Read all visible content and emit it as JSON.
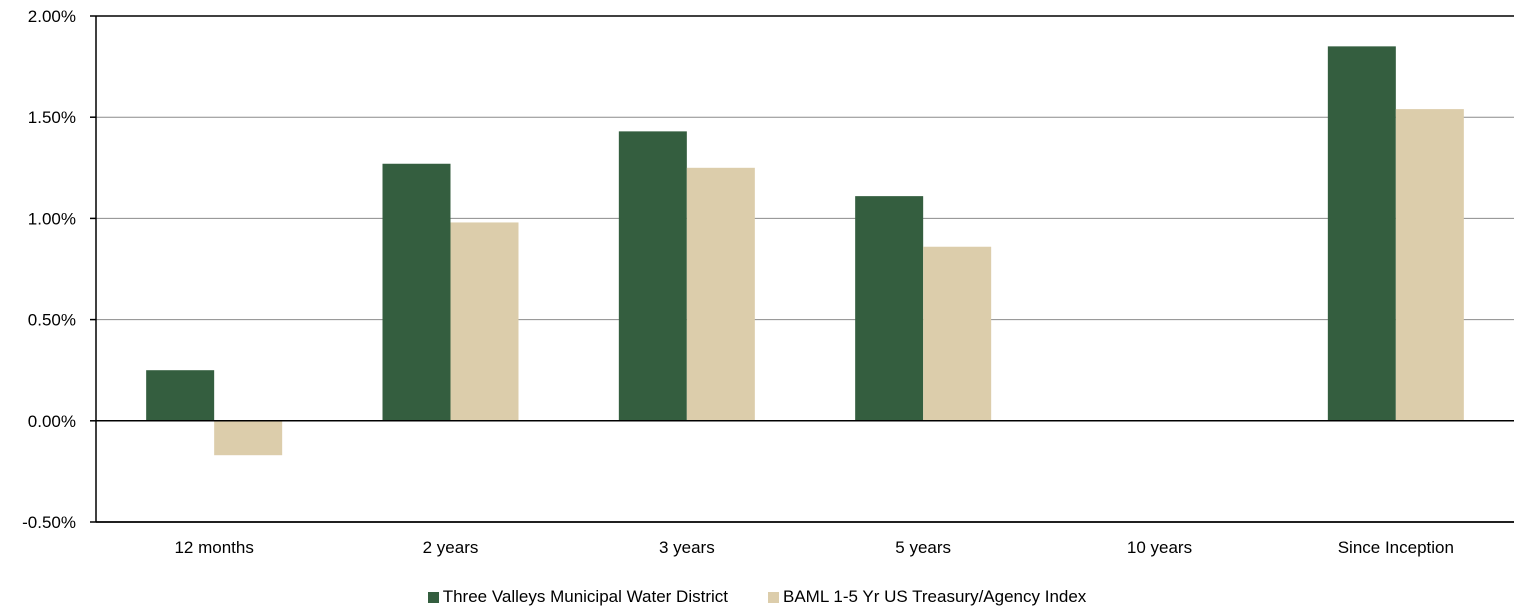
{
  "chart_data": {
    "type": "bar",
    "categories": [
      "12 months",
      "2 years",
      "3 years",
      "5 years",
      "10 years",
      "Since Inception"
    ],
    "series": [
      {
        "name": "Three Valleys Municipal Water District",
        "color": "#345e3f",
        "values": [
          0.25,
          1.27,
          1.43,
          1.11,
          null,
          1.85
        ]
      },
      {
        "name": "BAML 1-5 Yr US Treasury/Agency Index",
        "color": "#dccdab",
        "values": [
          -0.17,
          0.98,
          1.25,
          0.86,
          null,
          1.54
        ]
      }
    ],
    "y_ticks": [
      "2.00%",
      "1.50%",
      "1.00%",
      "0.50%",
      "0.00%",
      "-0.50%"
    ],
    "y_tick_values": [
      2.0,
      1.5,
      1.0,
      0.5,
      0.0,
      -0.5
    ],
    "ylim": [
      -0.5,
      2.0
    ],
    "grid": true,
    "legend_position": "bottom"
  }
}
